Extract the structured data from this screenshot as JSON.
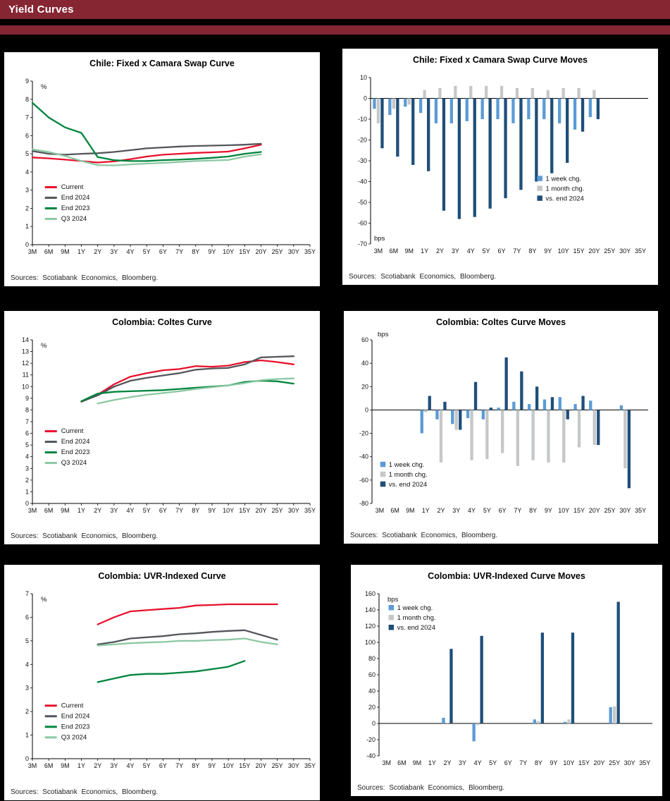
{
  "page": {
    "title": "Yield Curves",
    "header_color": "#862633",
    "background": "#000000"
  },
  "sources_label": "Sources: Scotiabank Economics, Bloomberg.",
  "palette": {
    "current_red": "#e8112d",
    "end2024_gray": "#53565a",
    "end2023_green": "#00843d",
    "q3_light_green": "#8cc8a2",
    "week_blue": "#5b9bd5",
    "month_gray": "#c6c7c8",
    "vs_end_navy": "#1f4e79"
  },
  "categories": [
    "3M",
    "6M",
    "9M",
    "1Y",
    "2Y",
    "3Y",
    "4Y",
    "5Y",
    "6Y",
    "7Y",
    "8Y",
    "9Y",
    "10Y",
    "15Y",
    "20Y",
    "25Y",
    "30Y",
    "35Y"
  ],
  "chart_data": [
    {
      "type": "line",
      "title": "Chile: Fixed x Camara Swap Curve",
      "unit": {
        "text": "%",
        "pos": "inside-top"
      },
      "ylim": [
        0,
        9
      ],
      "ystep": 1,
      "legend": {
        "x": 0.045,
        "y": 0.655
      },
      "series": [
        {
          "name": "Current",
          "color": "#e8112d",
          "values": [
            4.8,
            4.75,
            4.68,
            4.6,
            4.52,
            4.58,
            4.7,
            4.85,
            4.95,
            5.0,
            5.05,
            5.08,
            5.12,
            5.3,
            5.5,
            null,
            null,
            null
          ]
        },
        {
          "name": "End 2024",
          "color": "#53565a",
          "values": [
            5.15,
            5.0,
            4.95,
            5.0,
            5.03,
            5.1,
            5.2,
            5.3,
            5.35,
            5.4,
            5.43,
            5.45,
            5.47,
            5.5,
            5.55,
            null,
            null,
            null
          ]
        },
        {
          "name": "End 2023",
          "color": "#00843d",
          "values": [
            7.8,
            7.0,
            6.45,
            6.15,
            4.82,
            4.65,
            4.6,
            4.6,
            4.65,
            4.68,
            4.72,
            4.78,
            4.85,
            5.0,
            5.1,
            null,
            null,
            null
          ]
        },
        {
          "name": "Q3 2024",
          "color": "#8cc8a2",
          "values": [
            5.25,
            5.1,
            4.88,
            4.6,
            4.38,
            4.36,
            4.42,
            4.46,
            4.5,
            4.55,
            4.6,
            4.63,
            4.66,
            4.85,
            4.97,
            null,
            null,
            null
          ]
        }
      ]
    },
    {
      "type": "bar",
      "title": "Chile: Fixed x Camara Swap Curve Moves",
      "unit": {
        "text": "bps",
        "pos": "inside-bottom"
      },
      "ylim": [
        -70,
        10
      ],
      "ystep": 10,
      "legend": {
        "x": 0.6,
        "y": 0.62
      },
      "series": [
        {
          "name": "1 week chg.",
          "color": "#5b9bd5",
          "values": [
            -5,
            -8,
            -4,
            -7,
            -12,
            -12,
            -11,
            -10,
            -10,
            -12,
            -10,
            -10,
            -12,
            -15,
            -9,
            null,
            null,
            null
          ]
        },
        {
          "name": "1 month chg.",
          "color": "#c6c7c8",
          "values": [
            -12,
            -5,
            -3,
            4,
            5,
            6,
            6,
            6,
            6,
            5,
            5,
            4,
            5,
            5,
            4,
            null,
            null,
            null
          ]
        },
        {
          "name": "vs. end 2024",
          "color": "#1f4e79",
          "values": [
            -24,
            -28,
            -32,
            -35,
            -54,
            -58,
            -57,
            -53,
            -48,
            -44,
            -40,
            -36,
            -31,
            -16,
            -10,
            null,
            null,
            null
          ]
        }
      ]
    },
    {
      "type": "line",
      "title": "Colombia: Coltes Curve",
      "unit": {
        "text": "%",
        "pos": "inside-top"
      },
      "ylim": [
        0,
        14
      ],
      "ystep": 1,
      "legend": {
        "x": 0.045,
        "y": 0.565
      },
      "series": [
        {
          "name": "Current",
          "color": "#e8112d",
          "values": [
            null,
            null,
            null,
            8.7,
            9.3,
            10.2,
            10.85,
            11.15,
            11.4,
            11.5,
            11.75,
            11.7,
            11.8,
            12.1,
            12.25,
            12.1,
            11.9,
            null
          ]
        },
        {
          "name": "End 2024",
          "color": "#53565a",
          "values": [
            null,
            null,
            null,
            8.72,
            9.25,
            10.0,
            10.5,
            10.75,
            10.95,
            11.15,
            11.45,
            11.55,
            11.6,
            11.9,
            12.5,
            12.55,
            12.6,
            null
          ]
        },
        {
          "name": "End 2023",
          "color": "#00843d",
          "values": [
            null,
            null,
            null,
            8.75,
            9.4,
            9.55,
            9.6,
            9.65,
            9.7,
            9.8,
            9.9,
            10.0,
            10.1,
            10.4,
            10.5,
            10.45,
            10.25,
            null
          ]
        },
        {
          "name": "Q3 2024",
          "color": "#8cc8a2",
          "values": [
            null,
            null,
            null,
            null,
            8.55,
            8.85,
            9.1,
            9.3,
            9.45,
            9.6,
            9.8,
            9.95,
            10.1,
            10.3,
            10.55,
            10.65,
            10.7,
            null
          ]
        }
      ]
    },
    {
      "type": "bar",
      "title": "Colombia: Coltes Curve Moves",
      "unit": {
        "text": "bps",
        "pos": "above-top"
      },
      "ylim": [
        -80,
        60
      ],
      "ystep": 20,
      "legend": {
        "x": 0.03,
        "y": 0.775
      },
      "series": [
        {
          "name": "1 week chg.",
          "color": "#5b9bd5",
          "values": [
            null,
            null,
            null,
            -20,
            -8,
            -12,
            -7,
            -8,
            2,
            7,
            5,
            9,
            11,
            5,
            8,
            null,
            4,
            null
          ]
        },
        {
          "name": "1 month chg.",
          "color": "#c6c7c8",
          "values": [
            null,
            null,
            null,
            -2,
            -45,
            -17,
            -43,
            -42,
            -37,
            -48,
            -43,
            -45,
            -45,
            -32,
            -30,
            null,
            -50,
            null
          ]
        },
        {
          "name": "vs. end 2024",
          "color": "#1f4e79",
          "values": [
            null,
            null,
            null,
            12,
            7,
            -17,
            24,
            2,
            45,
            33,
            20,
            11,
            -8,
            12,
            -30,
            null,
            -67,
            null
          ]
        }
      ]
    },
    {
      "type": "line",
      "title": "Colombia: UVR-Indexed Curve",
      "unit": {
        "text": "%",
        "pos": "inside-top"
      },
      "ylim": [
        0,
        7
      ],
      "ystep": 1,
      "legend": {
        "x": 0.045,
        "y": 0.685
      },
      "series": [
        {
          "name": "Current",
          "color": "#e8112d",
          "values": [
            null,
            null,
            null,
            null,
            5.7,
            6.0,
            6.25,
            6.3,
            6.35,
            6.4,
            6.5,
            6.52,
            6.55,
            6.55,
            6.55,
            6.55,
            null,
            null
          ]
        },
        {
          "name": "End 2024",
          "color": "#53565a",
          "values": [
            null,
            null,
            null,
            null,
            4.85,
            4.95,
            5.1,
            5.15,
            5.2,
            5.28,
            5.32,
            5.38,
            5.42,
            5.45,
            5.25,
            5.05,
            null,
            null
          ]
        },
        {
          "name": "End 2023",
          "color": "#00843d",
          "values": [
            null,
            null,
            null,
            null,
            3.25,
            3.4,
            3.55,
            3.6,
            3.6,
            3.65,
            3.7,
            3.8,
            3.9,
            4.15,
            null,
            null,
            null,
            null
          ]
        },
        {
          "name": "Q3 2024",
          "color": "#8cc8a2",
          "values": [
            null,
            null,
            null,
            null,
            4.8,
            4.85,
            4.9,
            4.93,
            4.95,
            5.0,
            5.0,
            5.03,
            5.05,
            5.1,
            4.95,
            4.85,
            null,
            null
          ]
        }
      ]
    },
    {
      "type": "bar",
      "title": "Colombia: UVR-Indexed Curve Moves",
      "unit": {
        "text": "bps",
        "pos": "inside-top"
      },
      "ylim": [
        -40,
        160
      ],
      "ystep": 20,
      "legend": {
        "x": 0.035,
        "y": 0.1
      },
      "series": [
        {
          "name": "1 week chg.",
          "color": "#5b9bd5",
          "values": [
            null,
            null,
            null,
            null,
            7,
            null,
            -22,
            null,
            null,
            null,
            5,
            null,
            2,
            null,
            null,
            20,
            null,
            null
          ]
        },
        {
          "name": "1 month chg.",
          "color": "#c6c7c8",
          "values": [
            null,
            null,
            null,
            null,
            1,
            null,
            -2,
            null,
            null,
            null,
            3,
            null,
            5,
            null,
            null,
            21,
            null,
            null
          ]
        },
        {
          "name": "vs. end 2024",
          "color": "#1f4e79",
          "values": [
            null,
            null,
            null,
            null,
            92,
            null,
            108,
            null,
            null,
            null,
            112,
            null,
            112,
            null,
            null,
            150,
            null,
            null
          ]
        }
      ]
    }
  ]
}
